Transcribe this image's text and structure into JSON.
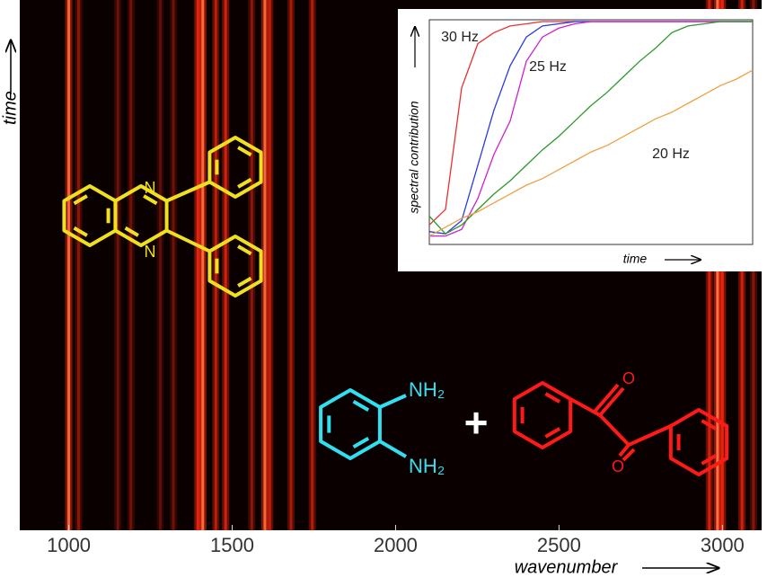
{
  "chart_data": [
    {
      "type": "heatmap",
      "xlabel": "wavenumber",
      "ylabel": "time",
      "xlim": [
        850,
        3120
      ],
      "xticks": [
        1000,
        1500,
        2000,
        2500,
        3000
      ],
      "color": "#ff2a10",
      "x": [
        1000,
        1030,
        1150,
        1190,
        1280,
        1320,
        1395,
        1410,
        1450,
        1480,
        1560,
        1600,
        1615,
        1680,
        1745,
        2960,
        2985,
        3000,
        3060,
        3095
      ],
      "values": [
        0.9,
        0.4,
        0.3,
        0.3,
        0.25,
        0.3,
        0.8,
        0.95,
        0.6,
        0.7,
        0.4,
        0.9,
        0.6,
        0.5,
        0.55,
        0.7,
        1.0,
        0.8,
        0.7,
        0.4
      ]
    },
    {
      "type": "line",
      "xlabel": "time",
      "ylabel": "spectral contribution",
      "xlim": [
        0,
        100
      ],
      "ylim": [
        0,
        1
      ],
      "annotations": [
        "30 Hz",
        "25 Hz",
        "20 Hz"
      ],
      "x": [
        0,
        5,
        10,
        15,
        20,
        25,
        30,
        35,
        40,
        45,
        50,
        55,
        60,
        65,
        70,
        75,
        80,
        85,
        90,
        95,
        100
      ],
      "series": [
        {
          "color": "#e83030",
          "values": [
            0.08,
            0.15,
            0.7,
            0.9,
            0.95,
            0.98,
            0.99,
            1,
            1,
            1,
            1,
            1,
            1,
            1,
            1,
            1,
            1,
            1,
            1,
            1,
            1
          ]
        },
        {
          "color": "#2a3ae0",
          "values": [
            0.05,
            0.04,
            0.1,
            0.35,
            0.6,
            0.8,
            0.93,
            0.98,
            0.99,
            1,
            1,
            1,
            1,
            1,
            1,
            1,
            1,
            1,
            1,
            1,
            1
          ]
        },
        {
          "color": "#d020d0",
          "values": [
            0.03,
            0.03,
            0.06,
            0.2,
            0.4,
            0.55,
            0.82,
            0.93,
            0.97,
            0.99,
            1,
            1,
            1,
            1,
            1,
            1,
            1,
            1,
            1,
            1,
            1
          ]
        },
        {
          "color": "#2a9a2a",
          "values": [
            0.12,
            0.04,
            0.08,
            0.15,
            0.22,
            0.28,
            0.35,
            0.42,
            0.48,
            0.55,
            0.62,
            0.68,
            0.75,
            0.82,
            0.88,
            0.95,
            0.98,
            0.99,
            1,
            1,
            1
          ]
        },
        {
          "color": "#f0a040",
          "values": [
            0.03,
            0.07,
            0.11,
            0.14,
            0.18,
            0.22,
            0.26,
            0.29,
            0.33,
            0.37,
            0.41,
            0.44,
            0.48,
            0.52,
            0.56,
            0.59,
            0.63,
            0.67,
            0.71,
            0.74,
            0.78
          ]
        }
      ]
    }
  ],
  "structures": {
    "product": {
      "atoms": [
        "N",
        "N"
      ]
    },
    "diamine": {
      "atoms": [
        "NH₂",
        "NH₂"
      ]
    },
    "plus": "+",
    "diketone": {
      "atoms": [
        "O",
        "O"
      ]
    }
  }
}
